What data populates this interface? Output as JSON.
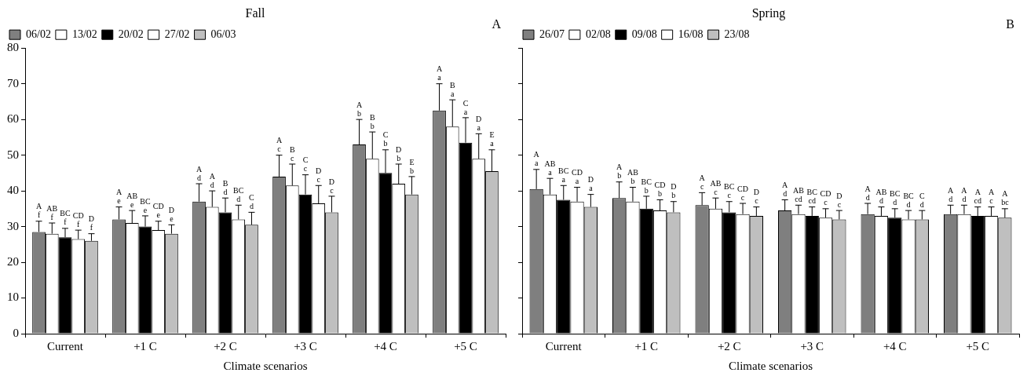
{
  "chart_data": [
    {
      "type": "bar",
      "title": "Fall",
      "panel_label": "A",
      "x_label": "Climate scenarios",
      "categories": [
        "Current",
        "+1 C",
        "+2 C",
        "+3 C",
        "+4 C",
        "+5 C"
      ],
      "ylim": [
        0,
        80
      ],
      "yticks": [
        0,
        10,
        20,
        30,
        40,
        50,
        60,
        70,
        80
      ],
      "grid": false,
      "legend": "top left",
      "series": [
        {
          "name": "06/02",
          "color": "#7f7f7f",
          "values": [
            28.5,
            32,
            37,
            44,
            53,
            62.5
          ],
          "error": [
            3,
            3.5,
            5,
            6,
            7,
            7.5
          ],
          "letters_upper": [
            "A",
            "A",
            "A",
            "A",
            "A",
            "A"
          ],
          "letters_lower": [
            "f",
            "e",
            "d",
            "c",
            "b",
            "a"
          ]
        },
        {
          "name": "13/02",
          "color": "#ffffff",
          "values": [
            28,
            31,
            35.5,
            41.5,
            49,
            58
          ],
          "error": [
            3,
            3.5,
            4.5,
            6,
            7.5,
            7.5
          ],
          "letters_upper": [
            "AB",
            "AB",
            "A",
            "B",
            "B",
            "B"
          ],
          "letters_lower": [
            "f",
            "e",
            "d",
            "c",
            "b",
            "a"
          ]
        },
        {
          "name": "20/02",
          "color": "#000000",
          "values": [
            27,
            30,
            34,
            39,
            45,
            53.5
          ],
          "error": [
            2.5,
            3,
            4,
            5.5,
            6.5,
            7
          ],
          "letters_upper": [
            "BC",
            "BC",
            "B",
            "C",
            "C",
            "C"
          ],
          "letters_lower": [
            "f",
            "e",
            "d",
            "c",
            "b",
            "a"
          ]
        },
        {
          "name": "27/02",
          "color": "#ffffff",
          "values": [
            26.5,
            29,
            32,
            36.5,
            42,
            49
          ],
          "error": [
            2.5,
            2.5,
            4,
            5,
            5.5,
            7
          ],
          "letters_upper": [
            "CD",
            "CD",
            "BC",
            "D",
            "D",
            "D"
          ],
          "letters_lower": [
            "f",
            "e",
            "d",
            "c",
            "b",
            "a"
          ]
        },
        {
          "name": "06/03",
          "color": "#bfbfbf",
          "values": [
            26,
            28,
            30.5,
            34,
            39,
            45.5
          ],
          "error": [
            2,
            2.5,
            3.5,
            4.5,
            5,
            6
          ],
          "letters_upper": [
            "D",
            "D",
            "C",
            "D",
            "E",
            "E"
          ],
          "letters_lower": [
            "f",
            "e",
            "d",
            "c",
            "b",
            "a"
          ]
        }
      ]
    },
    {
      "type": "bar",
      "title": "Spring",
      "panel_label": "B",
      "x_label": "Climate scenarios",
      "categories": [
        "Current",
        "+1 C",
        "+2 C",
        "+3 C",
        "+4 C",
        "+5 C"
      ],
      "ylim": [
        0,
        80
      ],
      "yticks": [
        0,
        10,
        20,
        30,
        40,
        50,
        60,
        70,
        80
      ],
      "grid": false,
      "legend": "top left",
      "tick_labels": "x",
      "series": [
        {
          "name": "26/07",
          "color": "#7f7f7f",
          "values": [
            40.5,
            38,
            36,
            34.5,
            33.5,
            33.5
          ],
          "error": [
            5.5,
            4.5,
            3.5,
            3,
            3,
            2.5
          ],
          "letters_upper": [
            "A",
            "A",
            "A",
            "A",
            "A",
            "A"
          ],
          "letters_lower": [
            "a",
            "b",
            "c",
            "d",
            "d",
            "d"
          ]
        },
        {
          "name": "02/08",
          "color": "#ffffff",
          "values": [
            39,
            37,
            35,
            33.5,
            33,
            33.5
          ],
          "error": [
            4.5,
            4,
            3,
            2.5,
            2.5,
            2.5
          ],
          "letters_upper": [
            "AB",
            "AB",
            "AB",
            "AB",
            "AB",
            "A"
          ],
          "letters_lower": [
            "a",
            "b",
            "c",
            "cd",
            "d",
            "d"
          ]
        },
        {
          "name": "09/08",
          "color": "#000000",
          "values": [
            37.5,
            35,
            34,
            33,
            32.5,
            33
          ],
          "error": [
            4,
            3.5,
            3,
            2.5,
            2.5,
            2.5
          ],
          "letters_upper": [
            "BC",
            "BC",
            "BC",
            "BC",
            "BC",
            "A"
          ],
          "letters_lower": [
            "a",
            "b",
            "c",
            "cd",
            "d",
            "cd"
          ]
        },
        {
          "name": "16/08",
          "color": "#ffffff",
          "values": [
            37,
            34.5,
            33.5,
            32.5,
            32,
            33
          ],
          "error": [
            4,
            3,
            3,
            2.5,
            2.5,
            2.5
          ],
          "letters_upper": [
            "CD",
            "CD",
            "CD",
            "CD",
            "BC",
            "A"
          ],
          "letters_lower": [
            "a",
            "b",
            "c",
            "c",
            "d",
            "c"
          ]
        },
        {
          "name": "23/08",
          "color": "#bfbfbf",
          "values": [
            35.5,
            34,
            33,
            32,
            32,
            32.5
          ],
          "error": [
            3.5,
            3,
            2.5,
            2.5,
            2.5,
            2.5
          ],
          "letters_upper": [
            "D",
            "D",
            "D",
            "D",
            "C",
            "A"
          ],
          "letters_lower": [
            "a",
            "b",
            "c",
            "c",
            "d",
            "bc"
          ]
        }
      ]
    }
  ]
}
